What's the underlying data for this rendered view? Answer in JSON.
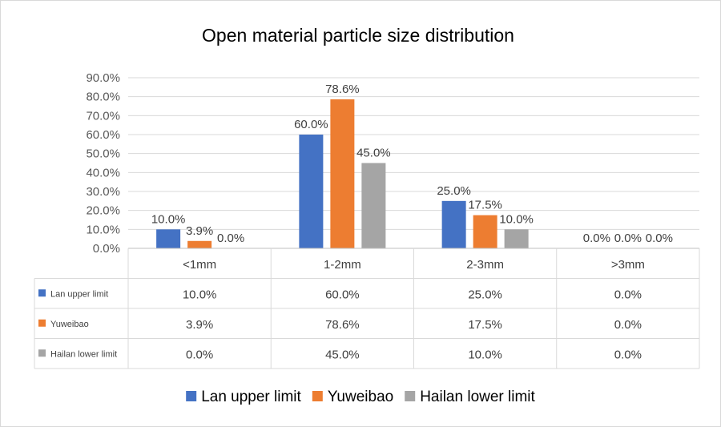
{
  "chart_data": {
    "type": "bar",
    "title": "Open material particle size distribution",
    "categories": [
      "<1mm",
      "1-2mm",
      "2-3mm",
      ">3mm"
    ],
    "series": [
      {
        "name": "Lan upper limit",
        "color": "#4472c4",
        "values": [
          10.0,
          60.0,
          25.0,
          0.0
        ],
        "labels": [
          "10.0%",
          "60.0%",
          "25.0%",
          "0.0%"
        ]
      },
      {
        "name": "Yuweibao",
        "color": "#ed7d31",
        "values": [
          3.9,
          78.6,
          17.5,
          0.0
        ],
        "labels": [
          "3.9%",
          "78.6%",
          "17.5%",
          "0.0%"
        ]
      },
      {
        "name": "Hailan lower limit",
        "color": "#a5a5a5",
        "values": [
          0.0,
          45.0,
          10.0,
          0.0
        ],
        "labels": [
          "0.0%",
          "45.0%",
          "10.0%",
          "0.0%"
        ]
      }
    ],
    "y_ticks": [
      "0.0%",
      "10.0%",
      "20.0%",
      "30.0%",
      "40.0%",
      "50.0%",
      "60.0%",
      "70.0%",
      "80.0%",
      "90.0%"
    ],
    "ylim": [
      0,
      90
    ],
    "grid": true,
    "data_table": true,
    "legend_position": "bottom"
  }
}
